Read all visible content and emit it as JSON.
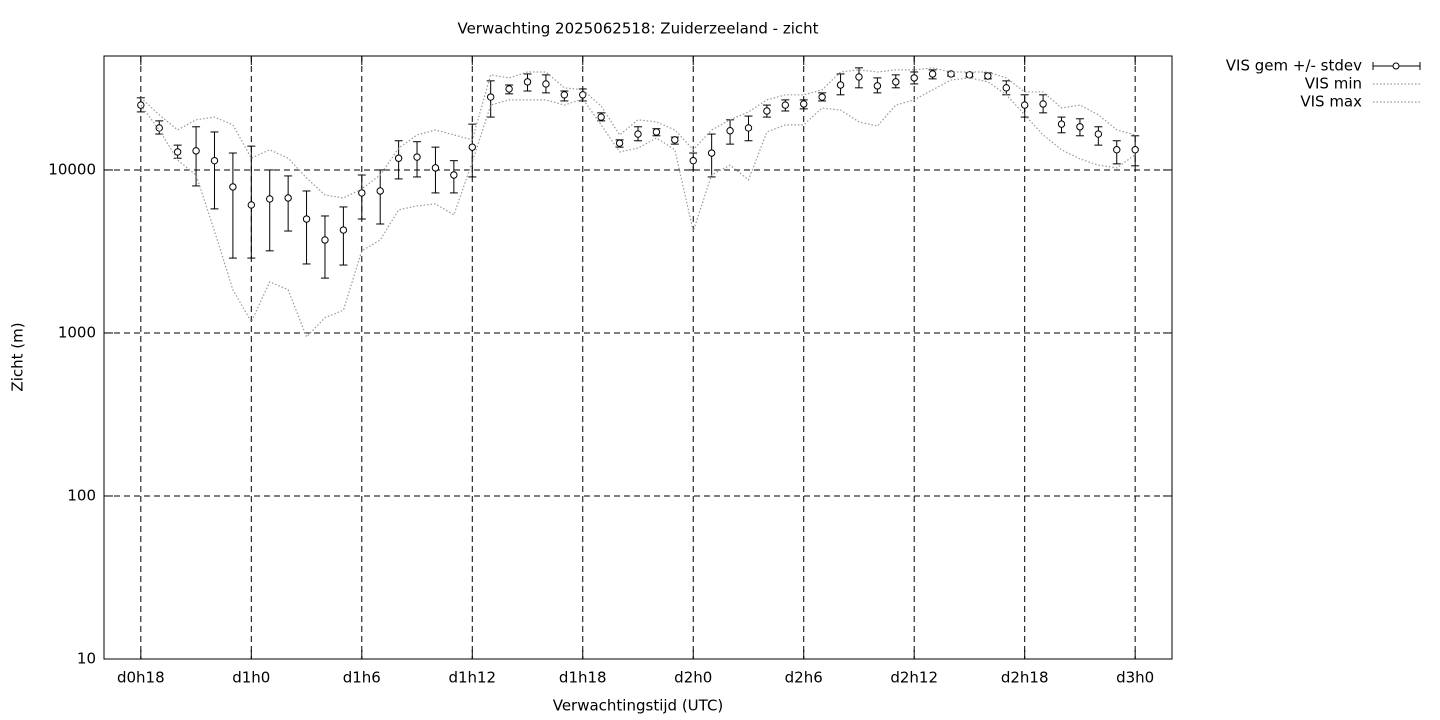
{
  "chart_data": {
    "type": "errorbar",
    "title": "Verwachting 2025062518: Zuiderzeeland - zicht",
    "xlabel": "Verwachtingstijd (UTC)",
    "ylabel": "Zicht (m)",
    "ylog": true,
    "grid": true,
    "legend": "outside-top-right",
    "ylim": [
      10,
      50000
    ],
    "yticks": [
      10,
      100,
      1000,
      10000
    ],
    "xlim": [
      16,
      74
    ],
    "xticks": [
      {
        "value": 18,
        "label": "d0h18"
      },
      {
        "value": 24,
        "label": "d1h0"
      },
      {
        "value": 30,
        "label": "d1h6"
      },
      {
        "value": 36,
        "label": "d1h12"
      },
      {
        "value": 42,
        "label": "d1h18"
      },
      {
        "value": 48,
        "label": "d2h0"
      },
      {
        "value": 54,
        "label": "d2h6"
      },
      {
        "value": 60,
        "label": "d2h12"
      },
      {
        "value": 66,
        "label": "d2h18"
      },
      {
        "value": 72,
        "label": "d3h0"
      }
    ],
    "x": [
      18,
      19,
      20,
      21,
      22,
      23,
      24,
      25,
      26,
      27,
      28,
      29,
      30,
      31,
      32,
      33,
      34,
      35,
      36,
      37,
      38,
      39,
      40,
      41,
      42,
      43,
      44,
      45,
      46,
      47,
      48,
      49,
      50,
      51,
      52,
      53,
      54,
      55,
      56,
      57,
      58,
      59,
      60,
      61,
      62,
      63,
      64,
      65,
      66,
      67,
      68,
      69,
      70,
      71,
      72
    ],
    "series": [
      {
        "name": "VIS gem +/- stdev",
        "color": "#000000",
        "values": [
          25000,
          18100,
          12900,
          13100,
          11400,
          7870,
          6100,
          6640,
          6730,
          5000,
          3720,
          4280,
          7230,
          7430,
          11800,
          12000,
          10300,
          9310,
          13800,
          28000,
          31400,
          34700,
          33700,
          28900,
          28900,
          21100,
          14600,
          16600,
          17100,
          15300,
          11400,
          12700,
          17400,
          18100,
          23000,
          25000,
          25400,
          28000,
          33200,
          37200,
          32800,
          34700,
          36700,
          38800,
          38800,
          38300,
          37700,
          31900,
          25000,
          25400,
          19100,
          18400,
          16600,
          13300,
          13300
        ],
        "low": [
          22700,
          16600,
          11800,
          7980,
          5770,
          2880,
          2880,
          3190,
          4220,
          2650,
          2170,
          2610,
          5000,
          4660,
          8810,
          9060,
          7230,
          7230,
          9060,
          21100,
          29300,
          30500,
          29700,
          26500,
          26500,
          20000,
          13800,
          15100,
          16200,
          14400,
          10000,
          9060,
          14400,
          15100,
          21100,
          23000,
          23700,
          26500,
          28900,
          31900,
          29700,
          31900,
          33700,
          36200,
          37700,
          37200,
          36200,
          28900,
          21100,
          22400,
          16900,
          16200,
          14200,
          10900,
          10600
        ],
        "high": [
          27700,
          20000,
          14200,
          18400,
          17100,
          12700,
          14000,
          10000,
          9190,
          7430,
          5220,
          5930,
          9310,
          10000,
          15100,
          14900,
          13800,
          11400,
          19100,
          35200,
          33200,
          38800,
          38300,
          30500,
          31400,
          22400,
          15300,
          18400,
          17900,
          15900,
          12700,
          16600,
          20300,
          21400,
          25000,
          26900,
          26900,
          29700,
          38800,
          42300,
          36700,
          38300,
          39900,
          41100,
          39900,
          39400,
          39400,
          35200,
          28900,
          28900,
          21100,
          20600,
          18400,
          15100,
          16200
        ]
      },
      {
        "name": "VIS min",
        "color": "#999999",
        "style": "dotted",
        "values": [
          25000,
          17600,
          11500,
          9310,
          4220,
          1840,
          1170,
          2060,
          1840,
          945,
          1240,
          1380,
          3190,
          3720,
          5690,
          6020,
          6190,
          5300,
          11200,
          25000,
          26900,
          26900,
          26900,
          25000,
          27300,
          18900,
          12900,
          13600,
          15700,
          13300,
          4220,
          9310,
          10700,
          8690,
          17100,
          18900,
          18900,
          24000,
          23300,
          19700,
          18600,
          25000,
          26900,
          31000,
          35600,
          36700,
          34700,
          28900,
          21800,
          16400,
          13300,
          11700,
          10700,
          10300,
          12400
        ]
      },
      {
        "name": "VIS max",
        "color": "#999999",
        "style": "dotted",
        "values": [
          27700,
          21800,
          17600,
          20300,
          21100,
          18900,
          11800,
          13300,
          11800,
          8930,
          7030,
          6730,
          7650,
          9310,
          13600,
          16400,
          17600,
          16400,
          15300,
          38300,
          36700,
          39900,
          39900,
          31900,
          31000,
          24700,
          16400,
          20300,
          19700,
          17600,
          13300,
          17600,
          20300,
          22700,
          26900,
          28900,
          28900,
          31000,
          39900,
          41100,
          39900,
          41100,
          41100,
          42300,
          39900,
          39900,
          39900,
          36700,
          30100,
          30100,
          24000,
          25000,
          21800,
          17600,
          16400
        ]
      }
    ]
  }
}
